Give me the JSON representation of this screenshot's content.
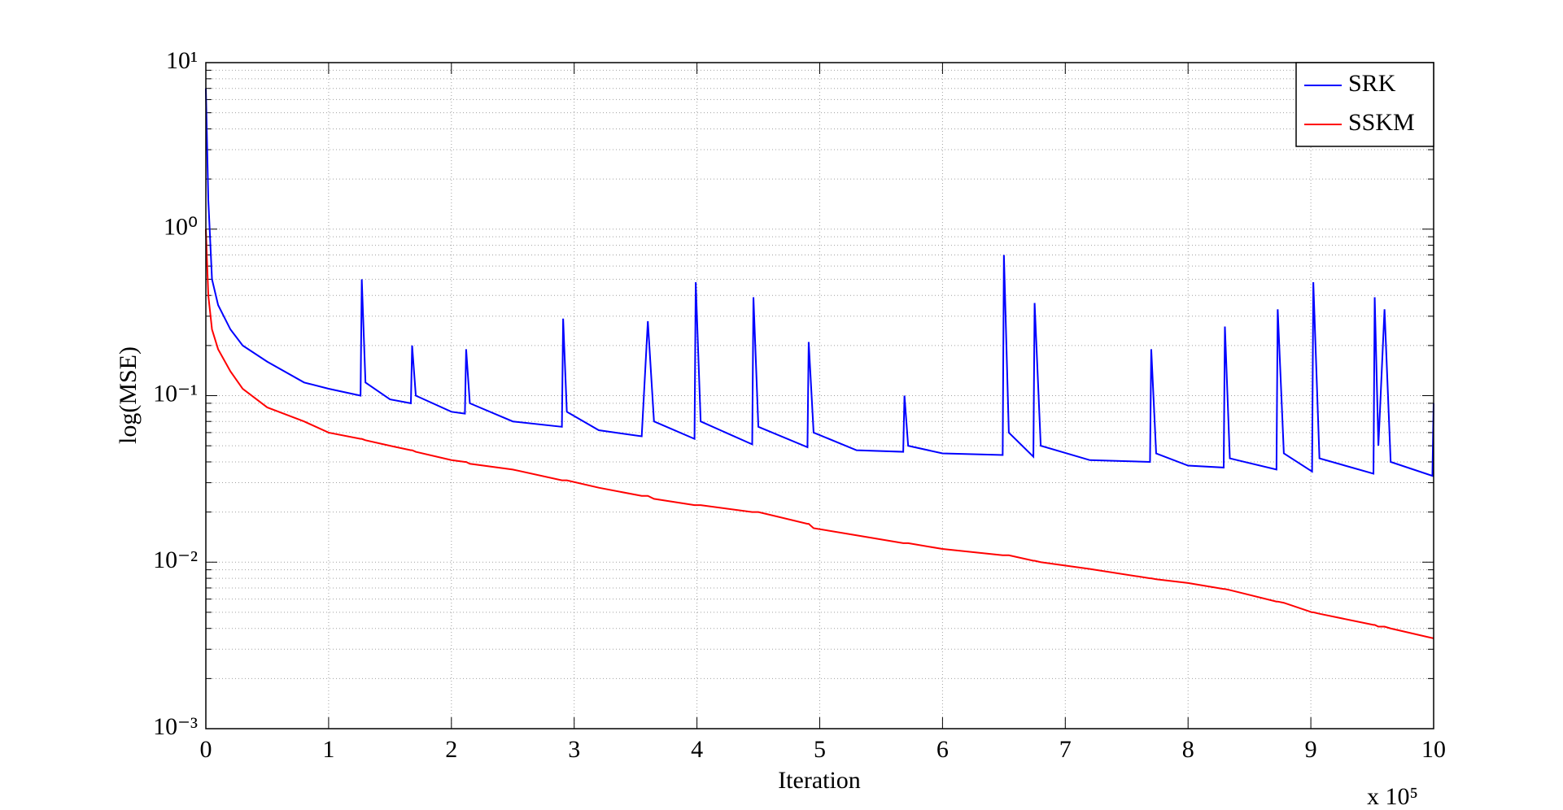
{
  "chart_data": {
    "type": "line",
    "xlabel": "Iteration",
    "ylabel": "log(MSE)",
    "x_multiplier": "x 10⁵",
    "log_y": true,
    "grid": true,
    "legend": "upper right",
    "xlim": [
      0,
      10
    ],
    "xticks": [
      0,
      1,
      2,
      3,
      4,
      5,
      6,
      7,
      8,
      9,
      10
    ],
    "ylim": [
      0.001,
      10
    ],
    "yticks": [
      {
        "value": 0.001,
        "label": "10⁻³"
      },
      {
        "value": 0.01,
        "label": "10⁻²"
      },
      {
        "value": 0.1,
        "label": "10⁻¹"
      },
      {
        "value": 1,
        "label": "10⁰"
      },
      {
        "value": 10,
        "label": "10¹"
      }
    ],
    "y_minor_ticks": [
      0.002,
      0.003,
      0.004,
      0.005,
      0.006,
      0.007,
      0.008,
      0.009,
      0.02,
      0.03,
      0.04,
      0.05,
      0.06,
      0.07,
      0.08,
      0.09,
      0.2,
      0.3,
      0.4,
      0.5,
      0.6,
      0.7,
      0.8,
      0.9,
      2,
      3,
      4,
      5,
      6,
      7,
      8,
      9
    ],
    "x": [
      0,
      0.02,
      0.05,
      0.1,
      0.2,
      0.3,
      0.5,
      0.8,
      1.0,
      1.26,
      1.27,
      1.3,
      1.5,
      1.67,
      1.68,
      1.71,
      2.0,
      2.11,
      2.12,
      2.15,
      2.5,
      2.9,
      2.91,
      2.94,
      3.2,
      3.55,
      3.6,
      3.65,
      3.98,
      3.99,
      4.03,
      4.45,
      4.46,
      4.5,
      4.9,
      4.91,
      4.95,
      5.3,
      5.68,
      5.69,
      5.72,
      6.0,
      6.49,
      6.5,
      6.54,
      6.74,
      6.75,
      6.8,
      7.2,
      7.69,
      7.7,
      7.74,
      8.0,
      8.29,
      8.3,
      8.34,
      8.72,
      8.73,
      8.78,
      9.01,
      9.02,
      9.07,
      9.51,
      9.52,
      9.55,
      9.6,
      9.65,
      9.99,
      10.0
    ],
    "series": [
      {
        "name": "SRK",
        "color": "#0000ff",
        "values": [
          7,
          1.5,
          0.5,
          0.35,
          0.25,
          0.2,
          0.16,
          0.12,
          0.11,
          0.1,
          0.5,
          0.12,
          0.095,
          0.09,
          0.2,
          0.1,
          0.08,
          0.078,
          0.19,
          0.09,
          0.07,
          0.065,
          0.29,
          0.08,
          0.062,
          0.057,
          0.28,
          0.07,
          0.055,
          0.48,
          0.07,
          0.051,
          0.39,
          0.065,
          0.049,
          0.21,
          0.06,
          0.047,
          0.046,
          0.1,
          0.05,
          0.045,
          0.044,
          0.7,
          0.06,
          0.043,
          0.36,
          0.05,
          0.041,
          0.04,
          0.19,
          0.045,
          0.038,
          0.037,
          0.26,
          0.042,
          0.036,
          0.33,
          0.045,
          0.035,
          0.48,
          0.042,
          0.034,
          0.39,
          0.05,
          0.33,
          0.04,
          0.033,
          0.09
        ]
      },
      {
        "name": "SSKM",
        "color": "#ff0000",
        "values": [
          1.0,
          0.4,
          0.25,
          0.19,
          0.14,
          0.11,
          0.085,
          0.07,
          0.06,
          0.055,
          0.055,
          0.054,
          0.05,
          0.047,
          0.047,
          0.046,
          0.041,
          0.04,
          0.04,
          0.039,
          0.036,
          0.031,
          0.031,
          0.031,
          0.028,
          0.025,
          0.025,
          0.024,
          0.022,
          0.022,
          0.022,
          0.02,
          0.02,
          0.02,
          0.017,
          0.017,
          0.016,
          0.0145,
          0.013,
          0.013,
          0.013,
          0.012,
          0.011,
          0.011,
          0.011,
          0.0102,
          0.0102,
          0.01,
          0.0091,
          0.008,
          0.008,
          0.0079,
          0.0075,
          0.0069,
          0.0069,
          0.0068,
          0.0058,
          0.0058,
          0.0057,
          0.005,
          0.005,
          0.0049,
          0.0042,
          0.0042,
          0.0041,
          0.0041,
          0.004,
          0.0035,
          0.0035
        ]
      }
    ]
  }
}
